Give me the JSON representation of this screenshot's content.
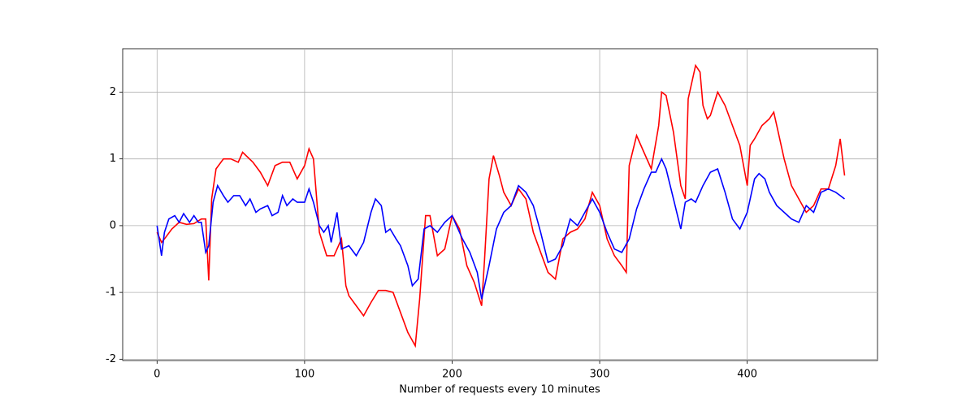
{
  "chart_data": {
    "type": "line",
    "xlabel": "Number of requests every 10 minutes",
    "xlim": [
      -23.3,
      488.3
    ],
    "ylim": [
      -2.02,
      2.65
    ],
    "xticks": [
      0,
      100,
      200,
      300,
      400
    ],
    "yticks": [
      -2,
      -1,
      0,
      1,
      2
    ],
    "grid": true,
    "series": [
      {
        "color": "#ff0000",
        "x": [
          0,
          3,
          5,
          10,
          15,
          20,
          25,
          30,
          33,
          35,
          37,
          40,
          45,
          50,
          55,
          58,
          65,
          70,
          75,
          80,
          85,
          90,
          95,
          100,
          103,
          106,
          110,
          115,
          120,
          125,
          128,
          130,
          135,
          140,
          145,
          150,
          155,
          160,
          165,
          170,
          175,
          178,
          182,
          185,
          190,
          195,
          200,
          205,
          210,
          215,
          220,
          222,
          225,
          228,
          232,
          235,
          240,
          245,
          250,
          255,
          260,
          265,
          270,
          275,
          280,
          285,
          290,
          295,
          300,
          305,
          310,
          315,
          318,
          320,
          325,
          330,
          335,
          340,
          342,
          345,
          350,
          355,
          358,
          360,
          365,
          368,
          370,
          373,
          375,
          380,
          385,
          390,
          395,
          400,
          402,
          405,
          410,
          415,
          418,
          420,
          425,
          430,
          435,
          440,
          445,
          450,
          455,
          460,
          463,
          466
        ],
        "values": [
          -0.1,
          -0.25,
          -0.2,
          -0.05,
          0.05,
          0.02,
          0.03,
          0.1,
          0.1,
          -0.82,
          0.4,
          0.85,
          1.0,
          1.0,
          0.95,
          1.1,
          0.95,
          0.8,
          0.6,
          0.9,
          0.95,
          0.95,
          0.7,
          0.9,
          1.15,
          1.0,
          -0.1,
          -0.45,
          -0.45,
          -0.2,
          -0.9,
          -1.05,
          -1.2,
          -1.35,
          -1.15,
          -0.97,
          -0.97,
          -1.0,
          -1.3,
          -1.6,
          -1.8,
          -1.1,
          0.15,
          0.15,
          -0.45,
          -0.35,
          0.15,
          -0.05,
          -0.6,
          -0.85,
          -1.2,
          -0.5,
          0.7,
          1.05,
          0.75,
          0.5,
          0.3,
          0.55,
          0.4,
          -0.1,
          -0.4,
          -0.7,
          -0.8,
          -0.2,
          -0.1,
          -0.05,
          0.1,
          0.5,
          0.3,
          -0.2,
          -0.45,
          -0.6,
          -0.7,
          0.9,
          1.35,
          1.1,
          0.85,
          1.5,
          2.0,
          1.95,
          1.4,
          0.6,
          0.4,
          1.9,
          2.4,
          2.3,
          1.8,
          1.6,
          1.65,
          2.0,
          1.8,
          1.5,
          1.2,
          0.6,
          1.2,
          1.3,
          1.5,
          1.6,
          1.7,
          1.5,
          1.0,
          0.6,
          0.4,
          0.2,
          0.3,
          0.55,
          0.55,
          0.9,
          1.3,
          0.75
        ]
      },
      {
        "color": "#0000ff",
        "x": [
          0,
          3,
          5,
          8,
          12,
          15,
          18,
          22,
          25,
          28,
          30,
          33,
          35,
          38,
          41,
          45,
          48,
          52,
          56,
          60,
          63,
          67,
          70,
          75,
          78,
          82,
          85,
          88,
          92,
          95,
          100,
          103,
          106,
          110,
          113,
          116,
          118,
          122,
          125,
          130,
          135,
          140,
          145,
          148,
          152,
          155,
          158,
          162,
          165,
          170,
          173,
          177,
          181,
          185,
          190,
          195,
          200,
          203,
          207,
          212,
          217,
          220,
          225,
          230,
          235,
          240,
          245,
          250,
          255,
          260,
          265,
          270,
          275,
          280,
          285,
          290,
          295,
          300,
          305,
          310,
          315,
          320,
          325,
          330,
          335,
          338,
          342,
          345,
          350,
          355,
          358,
          362,
          365,
          370,
          375,
          380,
          385,
          390,
          395,
          400,
          405,
          408,
          412,
          415,
          420,
          425,
          430,
          435,
          440,
          445,
          450,
          455,
          460,
          463,
          466
        ],
        "values": [
          0,
          -0.45,
          -0.1,
          0.1,
          0.15,
          0.05,
          0.18,
          0.05,
          0.15,
          0.05,
          0.05,
          -0.4,
          -0.3,
          0.35,
          0.6,
          0.45,
          0.35,
          0.45,
          0.45,
          0.3,
          0.4,
          0.2,
          0.25,
          0.3,
          0.15,
          0.2,
          0.45,
          0.3,
          0.4,
          0.35,
          0.35,
          0.55,
          0.35,
          0.0,
          -0.1,
          0.0,
          -0.25,
          0.2,
          -0.35,
          -0.3,
          -0.45,
          -0.25,
          0.2,
          0.4,
          0.3,
          -0.1,
          -0.05,
          -0.2,
          -0.3,
          -0.6,
          -0.9,
          -0.8,
          -0.05,
          0.0,
          -0.1,
          0.05,
          0.15,
          0.0,
          -0.2,
          -0.4,
          -0.7,
          -1.1,
          -0.6,
          -0.05,
          0.2,
          0.3,
          0.6,
          0.5,
          0.3,
          -0.1,
          -0.55,
          -0.5,
          -0.3,
          0.1,
          0.0,
          0.2,
          0.4,
          0.2,
          -0.1,
          -0.35,
          -0.4,
          -0.2,
          0.25,
          0.55,
          0.8,
          0.8,
          1.0,
          0.85,
          0.4,
          -0.05,
          0.35,
          0.4,
          0.35,
          0.6,
          0.8,
          0.85,
          0.5,
          0.1,
          -0.05,
          0.2,
          0.7,
          0.78,
          0.7,
          0.5,
          0.3,
          0.2,
          0.1,
          0.05,
          0.3,
          0.2,
          0.5,
          0.55,
          0.5,
          0.45,
          0.4
        ]
      }
    ]
  }
}
